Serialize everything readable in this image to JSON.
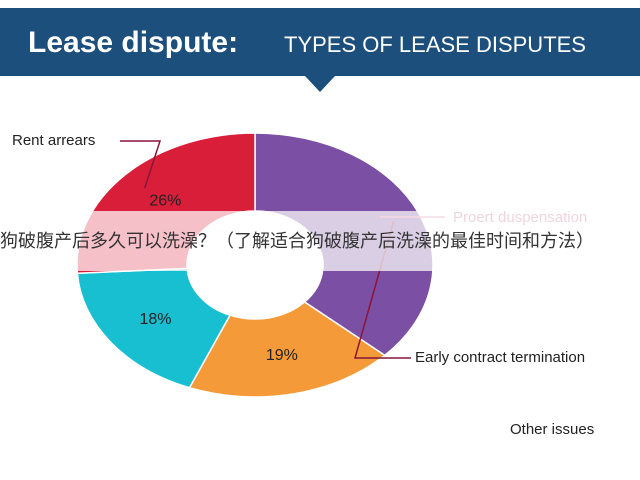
{
  "chart_data": {
    "type": "donut",
    "title": "Lease dispute:",
    "subtitle": "TYPES OF LEASE DISPUTES",
    "categories": [
      "Early contract termination",
      null,
      null,
      "Rent arrears"
    ],
    "values": [
      37,
      19,
      18,
      26
    ],
    "value_labels": [
      null,
      "19%",
      "18%",
      "26%"
    ],
    "colors": [
      "#7b4fa3",
      "#f59a38",
      "#17bfd0",
      "#d91e3a"
    ],
    "annotations": [
      "Proert duspensation",
      "Other issues"
    ]
  },
  "overlay_text": "狗破腹产后多久可以洗澡？（了解适合狗破腹产后洗澡的最佳时间和方法）"
}
